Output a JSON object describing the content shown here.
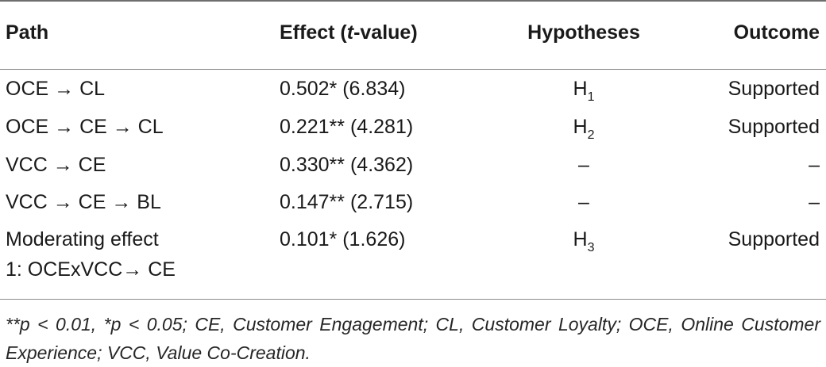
{
  "table": {
    "headers": {
      "path": "Path",
      "effect_prefix": "Effect (",
      "effect_italic": "t",
      "effect_suffix": "-value)",
      "hypotheses": "Hypotheses",
      "outcome": "Outcome"
    },
    "rows": [
      {
        "path": "OCE → CL",
        "effect": "0.502* (6.834)",
        "hyp_main": "H",
        "hyp_sub": "1",
        "outcome": "Supported"
      },
      {
        "path": "OCE → CE → CL",
        "effect": "0.221** (4.281)",
        "hyp_main": "H",
        "hyp_sub": "2",
        "outcome": "Supported"
      },
      {
        "path": "VCC → CE",
        "effect": "0.330** (4.362)",
        "hyp_main": "–",
        "hyp_sub": "",
        "outcome": "–"
      },
      {
        "path": "VCC → CE → BL",
        "effect": "0.147** (2.715)",
        "hyp_main": "–",
        "hyp_sub": "",
        "outcome": "–"
      },
      {
        "path": "Moderating effect",
        "path_line2": "1: OCExVCC→ CE",
        "effect": "0.101* (1.626)",
        "hyp_main": "H",
        "hyp_sub": "3",
        "outcome": "Supported"
      }
    ]
  },
  "footnote": "**p < 0.01, *p < 0.05; CE, Customer Engagement; CL, Customer Loyalty; OCE, Online Customer Experience; VCC, Value Co-Creation."
}
